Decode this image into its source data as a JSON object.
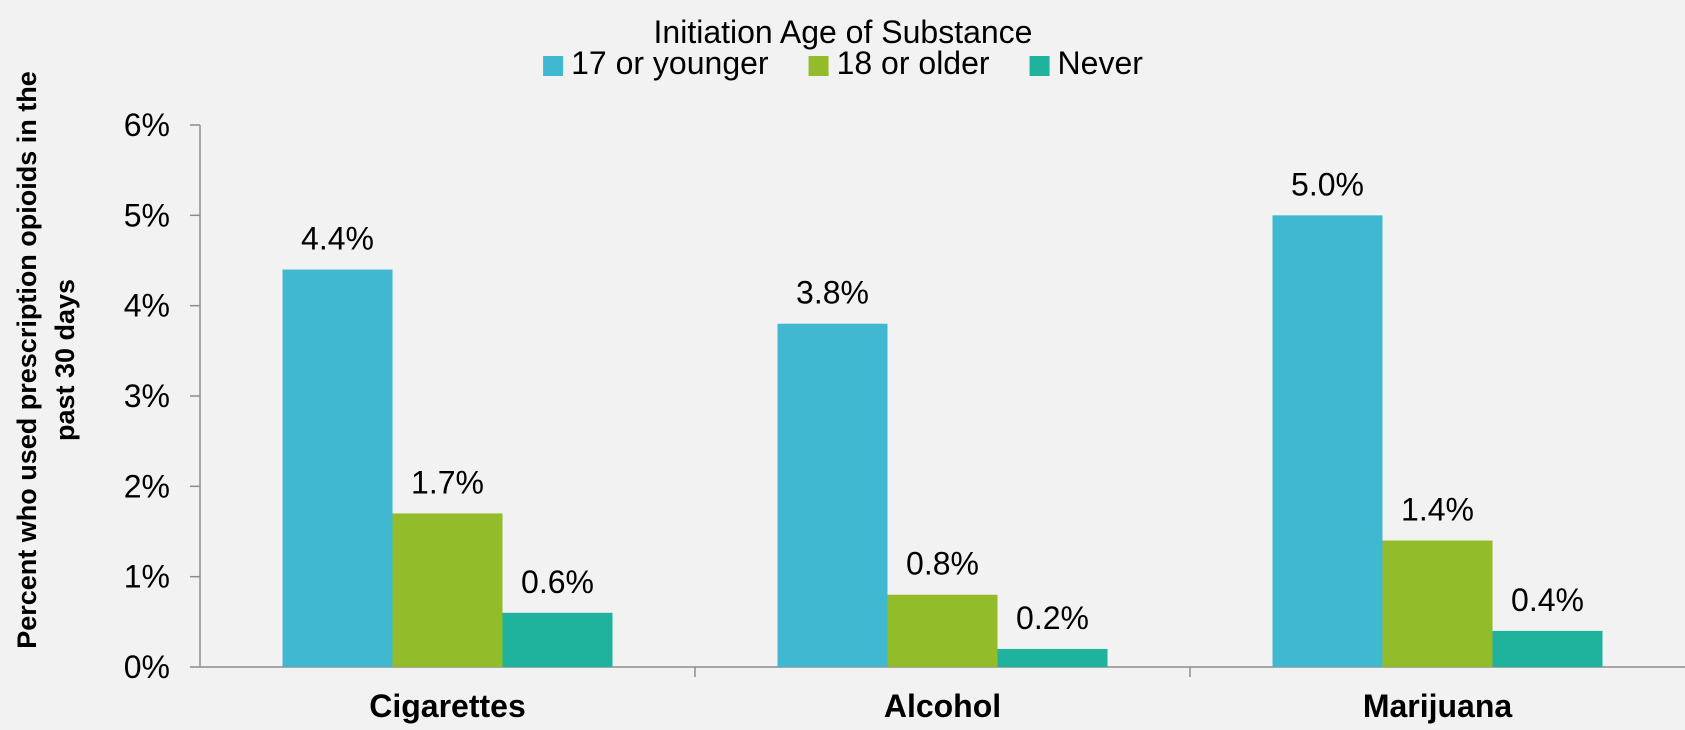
{
  "chart_data": {
    "type": "bar",
    "title": "",
    "legend_title": "Initiation Age of Substance",
    "legend_position": "top-center",
    "ylabel_lines": [
      "Percent who used prescription opioids in the",
      "past 30 days"
    ],
    "xlabel": "",
    "categories": [
      "Cigarettes",
      "Alcohol",
      "Marijuana"
    ],
    "series": [
      {
        "name": "17 or younger",
        "color": "#41b8d1",
        "values": [
          4.4,
          3.8,
          5.0
        ],
        "labels": [
          "4.4%",
          "3.8%",
          "5.0%"
        ]
      },
      {
        "name": "18 or older",
        "color": "#93bc2b",
        "values": [
          1.7,
          0.8,
          1.4
        ],
        "labels": [
          "1.7%",
          "0.8%",
          "1.4%"
        ]
      },
      {
        "name": "Never",
        "color": "#1fb39e",
        "values": [
          0.6,
          0.2,
          0.4
        ],
        "labels": [
          "0.6%",
          "0.2%",
          "0.4%"
        ]
      }
    ],
    "ylim": [
      0,
      6
    ],
    "yticks": [
      0,
      1,
      2,
      3,
      4,
      5,
      6
    ],
    "ytick_labels": [
      "0%",
      "1%",
      "2%",
      "3%",
      "4%",
      "5%",
      "6%"
    ],
    "grid": false
  }
}
